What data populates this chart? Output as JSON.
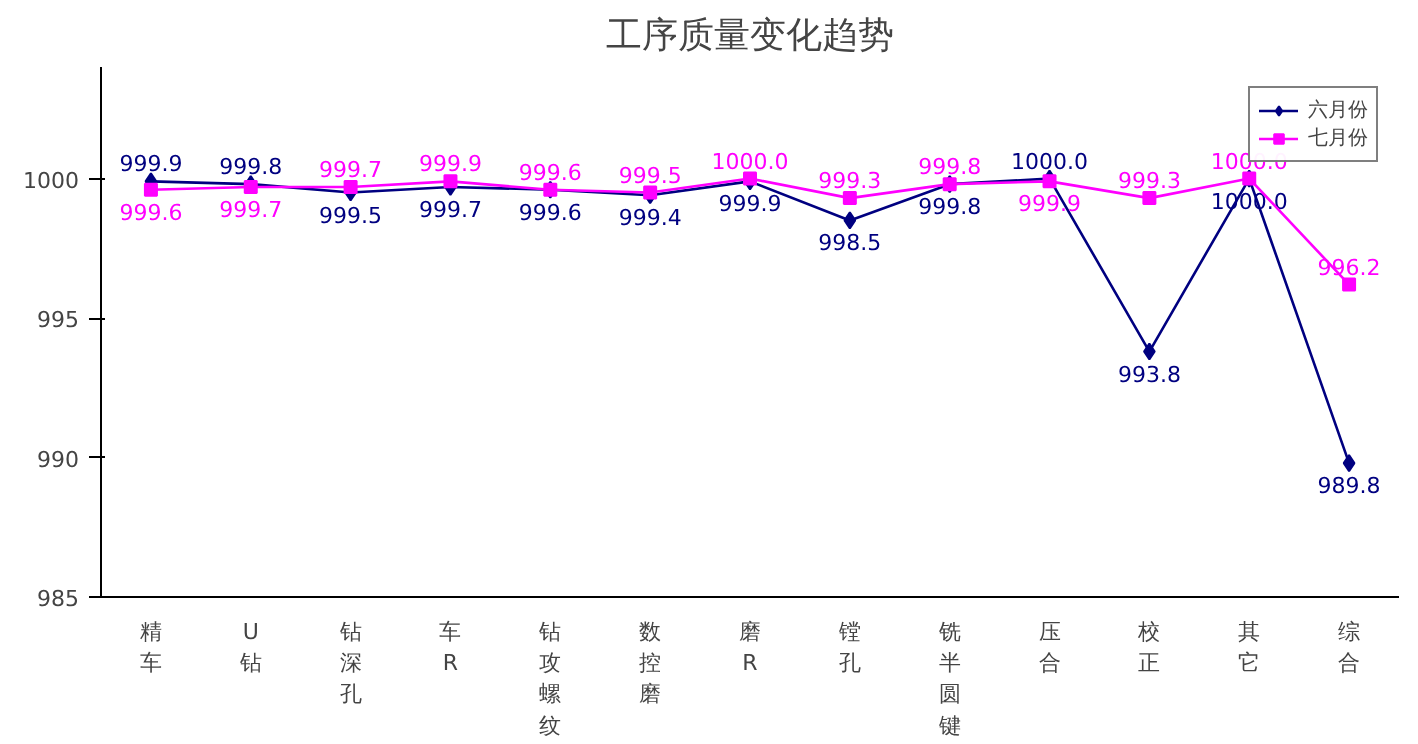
{
  "chart_data": {
    "type": "line",
    "title": "工序质量变化趋势",
    "categories": [
      "精车",
      "U钻",
      "钻深孔",
      "车R",
      "钻攻螺纹",
      "数控磨",
      "磨R",
      "镗孔",
      "铣半圆键",
      "压合",
      "校正",
      "其它",
      "综合"
    ],
    "series": [
      {
        "name": "六月份",
        "color": "#000080",
        "marker": "diamond",
        "values": [
          999.9,
          999.8,
          999.5,
          999.7,
          999.6,
          999.4,
          999.9,
          998.5,
          999.8,
          1000.0,
          993.8,
          1000.0,
          989.8
        ],
        "value_labels": [
          "999.9",
          "999.8",
          "999.5",
          "999.7",
          "999.6",
          "999.4",
          "999.9",
          "998.5",
          "999.8",
          "1000.0",
          "993.8",
          "1000.0",
          "989.8"
        ]
      },
      {
        "name": "七月份",
        "color": "#ff00ff",
        "marker": "square",
        "values": [
          999.6,
          999.7,
          999.7,
          999.9,
          999.6,
          999.5,
          1000.0,
          999.3,
          999.8,
          999.9,
          999.3,
          1000.0,
          996.2
        ],
        "value_labels": [
          "999.6",
          "999.7",
          "999.7",
          "999.9",
          "999.6",
          "999.5",
          "1000.0",
          "999.3",
          "999.8",
          "999.9",
          "999.3",
          "1000.0",
          "996.2"
        ]
      }
    ],
    "ylim": [
      985,
      1004
    ],
    "yticks": [
      985,
      990,
      995,
      1000
    ],
    "legend": "top right",
    "grid": false
  }
}
